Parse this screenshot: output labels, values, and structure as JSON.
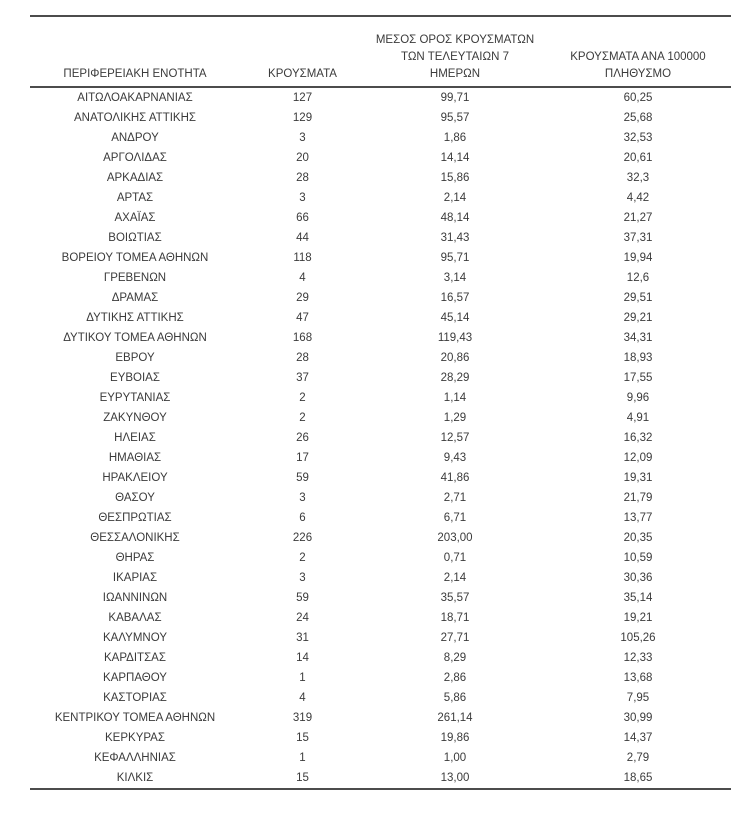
{
  "document": {
    "kind": "statistics-table-page",
    "language": "el"
  },
  "colors": {
    "background": "#ffffff",
    "text": "#3b3b3b",
    "rule": "#4c4c4c"
  },
  "table": {
    "columns": [
      {
        "key": "name",
        "label": "ΠΕΡΙΦΕΡΕΙΑΚΗ ΕΝΟΤΗΤΑ"
      },
      {
        "key": "cases",
        "label": "ΚΡΟΥΣΜΑΤΑ"
      },
      {
        "key": "avg7",
        "label": "ΜΕΣΟΣ ΟΡΟΣ ΚΡΟΥΣΜΑΤΩΝ\nΤΩΝ ΤΕΛΕΥΤΑΙΩΝ 7\nΗΜΕΡΩΝ"
      },
      {
        "key": "per100k",
        "label": "ΚΡΟΥΣΜΑΤΑ ΑΝΑ 100000\nΠΛΗΘΥΣΜΟ"
      }
    ],
    "rows": [
      {
        "name": "ΑΙΤΩΛΟΑΚΑΡΝΑΝΙΑΣ",
        "cases": "127",
        "avg7": "99,71",
        "per100k": "60,25"
      },
      {
        "name": "ΑΝΑΤΟΛΙΚΗΣ ΑΤΤΙΚΗΣ",
        "cases": "129",
        "avg7": "95,57",
        "per100k": "25,68"
      },
      {
        "name": "ΑΝΔΡΟΥ",
        "cases": "3",
        "avg7": "1,86",
        "per100k": "32,53"
      },
      {
        "name": "ΑΡΓΟΛΙΔΑΣ",
        "cases": "20",
        "avg7": "14,14",
        "per100k": "20,61"
      },
      {
        "name": "ΑΡΚΑΔΙΑΣ",
        "cases": "28",
        "avg7": "15,86",
        "per100k": "32,3"
      },
      {
        "name": "ΑΡΤΑΣ",
        "cases": "3",
        "avg7": "2,14",
        "per100k": "4,42"
      },
      {
        "name": "ΑΧΑΪΑΣ",
        "cases": "66",
        "avg7": "48,14",
        "per100k": "21,27"
      },
      {
        "name": "ΒΟΙΩΤΙΑΣ",
        "cases": "44",
        "avg7": "31,43",
        "per100k": "37,31"
      },
      {
        "name": "ΒΟΡΕΙΟΥ ΤΟΜΕΑ ΑΘΗΝΩΝ",
        "cases": "118",
        "avg7": "95,71",
        "per100k": "19,94"
      },
      {
        "name": "ΓΡΕΒΕΝΩΝ",
        "cases": "4",
        "avg7": "3,14",
        "per100k": "12,6"
      },
      {
        "name": "ΔΡΑΜΑΣ",
        "cases": "29",
        "avg7": "16,57",
        "per100k": "29,51"
      },
      {
        "name": "ΔΥΤΙΚΗΣ ΑΤΤΙΚΗΣ",
        "cases": "47",
        "avg7": "45,14",
        "per100k": "29,21"
      },
      {
        "name": "ΔΥΤΙΚΟΥ ΤΟΜΕΑ ΑΘΗΝΩΝ",
        "cases": "168",
        "avg7": "119,43",
        "per100k": "34,31"
      },
      {
        "name": "ΕΒΡΟΥ",
        "cases": "28",
        "avg7": "20,86",
        "per100k": "18,93"
      },
      {
        "name": "ΕΥΒΟΙΑΣ",
        "cases": "37",
        "avg7": "28,29",
        "per100k": "17,55"
      },
      {
        "name": "ΕΥΡΥΤΑΝΙΑΣ",
        "cases": "2",
        "avg7": "1,14",
        "per100k": "9,96"
      },
      {
        "name": "ΖΑΚΥΝΘΟΥ",
        "cases": "2",
        "avg7": "1,29",
        "per100k": "4,91"
      },
      {
        "name": "ΗΛΕΙΑΣ",
        "cases": "26",
        "avg7": "12,57",
        "per100k": "16,32"
      },
      {
        "name": "ΗΜΑΘΙΑΣ",
        "cases": "17",
        "avg7": "9,43",
        "per100k": "12,09"
      },
      {
        "name": "ΗΡΑΚΛΕΙΟΥ",
        "cases": "59",
        "avg7": "41,86",
        "per100k": "19,31"
      },
      {
        "name": "ΘΑΣΟΥ",
        "cases": "3",
        "avg7": "2,71",
        "per100k": "21,79"
      },
      {
        "name": "ΘΕΣΠΡΩΤΙΑΣ",
        "cases": "6",
        "avg7": "6,71",
        "per100k": "13,77"
      },
      {
        "name": "ΘΕΣΣΑΛΟΝΙΚΗΣ",
        "cases": "226",
        "avg7": "203,00",
        "per100k": "20,35"
      },
      {
        "name": "ΘΗΡΑΣ",
        "cases": "2",
        "avg7": "0,71",
        "per100k": "10,59"
      },
      {
        "name": "ΙΚΑΡΙΑΣ",
        "cases": "3",
        "avg7": "2,14",
        "per100k": "30,36"
      },
      {
        "name": "ΙΩΑΝΝΙΝΩΝ",
        "cases": "59",
        "avg7": "35,57",
        "per100k": "35,14"
      },
      {
        "name": "ΚΑΒΑΛΑΣ",
        "cases": "24",
        "avg7": "18,71",
        "per100k": "19,21"
      },
      {
        "name": "ΚΑΛΥΜΝΟΥ",
        "cases": "31",
        "avg7": "27,71",
        "per100k": "105,26"
      },
      {
        "name": "ΚΑΡΔΙΤΣΑΣ",
        "cases": "14",
        "avg7": "8,29",
        "per100k": "12,33"
      },
      {
        "name": "ΚΑΡΠΑΘΟΥ",
        "cases": "1",
        "avg7": "2,86",
        "per100k": "13,68"
      },
      {
        "name": "ΚΑΣΤΟΡΙΑΣ",
        "cases": "4",
        "avg7": "5,86",
        "per100k": "7,95"
      },
      {
        "name": "ΚΕΝΤΡΙΚΟΥ ΤΟΜΕΑ ΑΘΗΝΩΝ",
        "cases": "319",
        "avg7": "261,14",
        "per100k": "30,99"
      },
      {
        "name": "ΚΕΡΚΥΡΑΣ",
        "cases": "15",
        "avg7": "19,86",
        "per100k": "14,37"
      },
      {
        "name": "ΚΕΦΑΛΛΗΝΙΑΣ",
        "cases": "1",
        "avg7": "1,00",
        "per100k": "2,79"
      },
      {
        "name": "ΚΙΛΚΙΣ",
        "cases": "15",
        "avg7": "13,00",
        "per100k": "18,65"
      }
    ]
  }
}
